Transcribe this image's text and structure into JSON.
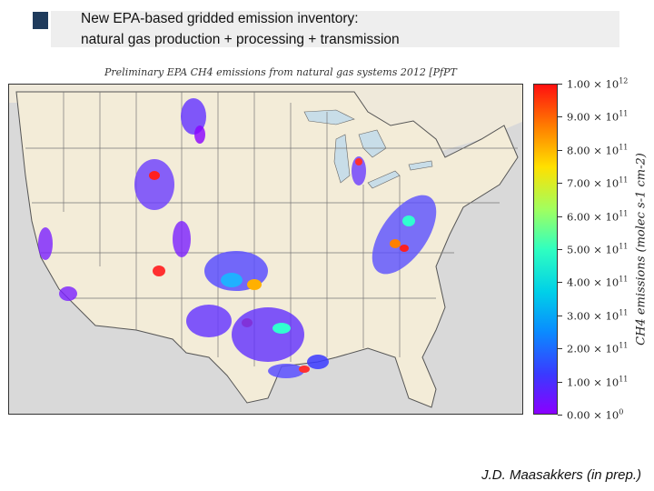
{
  "header": {
    "title_line1": "New EPA-based gridded emission inventory:",
    "title_line2": "natural gas production + processing + transmission"
  },
  "map": {
    "title": "Preliminary EPA CH4 emissions from natural gas systems 2012 [PfPT",
    "region": "Contiguous United States",
    "colors": {
      "land": "#f3ecd8",
      "water": "#c8dde8",
      "borders": "#666666",
      "background": "#d9d9d9"
    }
  },
  "colorbar": {
    "label": "CH4 emissions (molec s-1 cm-2)",
    "ticks": [
      {
        "mantissa": "0.00",
        "exp": "0"
      },
      {
        "mantissa": "1.00",
        "exp": "11"
      },
      {
        "mantissa": "2.00",
        "exp": "11"
      },
      {
        "mantissa": "3.00",
        "exp": "11"
      },
      {
        "mantissa": "4.00",
        "exp": "11"
      },
      {
        "mantissa": "5.00",
        "exp": "11"
      },
      {
        "mantissa": "6.00",
        "exp": "11"
      },
      {
        "mantissa": "7.00",
        "exp": "11"
      },
      {
        "mantissa": "8.00",
        "exp": "11"
      },
      {
        "mantissa": "9.00",
        "exp": "11"
      },
      {
        "mantissa": "1.00",
        "exp": "12"
      }
    ]
  },
  "citation": "J.D. Maasakkers (in prep.)"
}
